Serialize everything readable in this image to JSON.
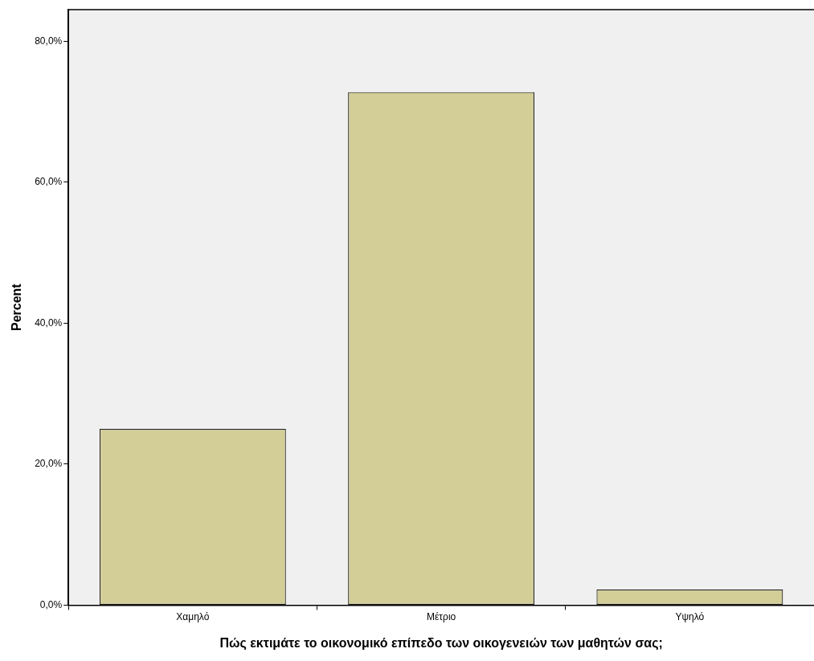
{
  "chart_data": {
    "type": "bar",
    "xlabel": "Πώς εκτιμάτε το οικονομικό επίπεδο των οικογενειών των μαθητών σας;",
    "ylabel": "Percent",
    "categories": [
      "Χαμηλό",
      "Μέτριο",
      "Υψηλό"
    ],
    "values": [
      25.0,
      72.8,
      2.2
    ],
    "color": "#d3cd98",
    "ylim": [
      0,
      84.5
    ],
    "yticks": [
      {
        "value": 0,
        "label": "0,0%"
      },
      {
        "value": 20,
        "label": "20,0%"
      },
      {
        "value": 40,
        "label": "40,0%"
      },
      {
        "value": 60,
        "label": "60,0%"
      },
      {
        "value": 80,
        "label": "80,0%"
      }
    ],
    "grid": false,
    "legend": false
  }
}
